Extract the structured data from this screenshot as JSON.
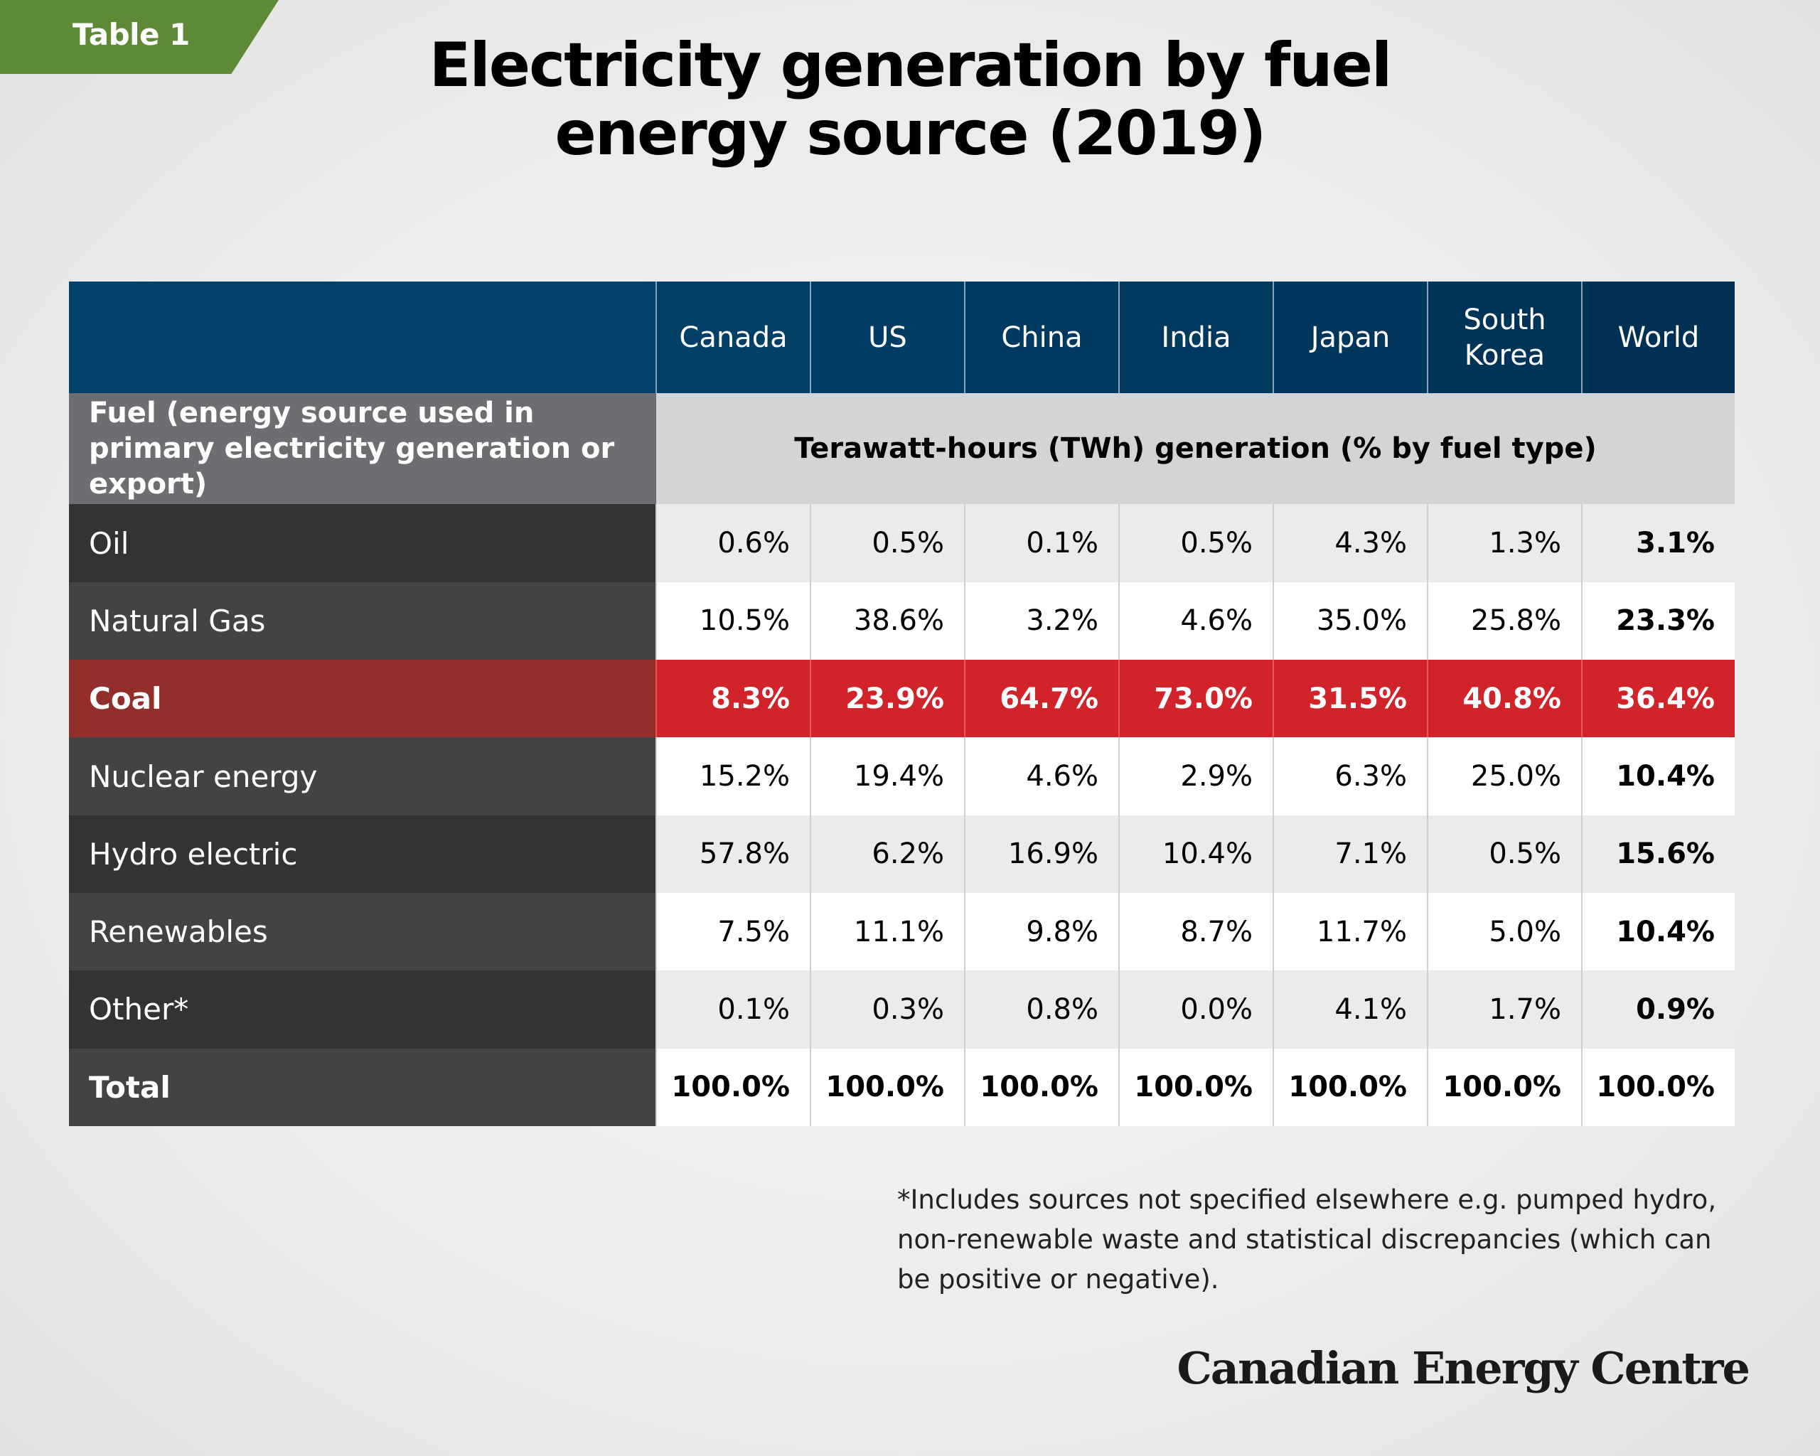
{
  "tag": "Table 1",
  "title": [
    "Electricity generation by fuel",
    "energy source (2019)"
  ],
  "colors": {
    "tag_green": "#5e8a37",
    "header_navy": "#01416a",
    "coal_red": "#d0232a",
    "coal_dark_red": "#932e2a"
  },
  "columns": [
    "Canada",
    "US",
    "China",
    "India",
    "Japan",
    "South Korea",
    "World"
  ],
  "subheader": {
    "left": "Fuel (energy source used in primary electricity generation or export)",
    "right": "Terawatt-hours (TWh) generation (% by fuel type)"
  },
  "chart_data": {
    "type": "table",
    "title": "Electricity generation by fuel energy source (2019)",
    "row_header": "Fuel (energy source used in primary electricity generation or export)",
    "unit_label": "Terawatt-hours (TWh) generation (% by fuel type)",
    "columns": [
      "Canada",
      "US",
      "China",
      "India",
      "Japan",
      "South Korea",
      "World"
    ],
    "rows": [
      {
        "label": "Oil",
        "values": [
          "0.6%",
          "0.5%",
          "0.1%",
          "0.5%",
          "4.3%",
          "1.3%",
          "3.1%"
        ]
      },
      {
        "label": "Natural Gas",
        "values": [
          "10.5%",
          "38.6%",
          "3.2%",
          "4.6%",
          "35.0%",
          "25.8%",
          "23.3%"
        ]
      },
      {
        "label": "Coal",
        "values": [
          "8.3%",
          "23.9%",
          "64.7%",
          "73.0%",
          "31.5%",
          "40.8%",
          "36.4%"
        ],
        "highlight": true
      },
      {
        "label": "Nuclear energy",
        "values": [
          "15.2%",
          "19.4%",
          "4.6%",
          "2.9%",
          "6.3%",
          "25.0%",
          "10.4%"
        ]
      },
      {
        "label": "Hydro electric",
        "values": [
          "57.8%",
          "6.2%",
          "16.9%",
          "10.4%",
          "7.1%",
          "0.5%",
          "15.6%"
        ]
      },
      {
        "label": "Renewables",
        "values": [
          "7.5%",
          "11.1%",
          "9.8%",
          "8.7%",
          "11.7%",
          "5.0%",
          "10.4%"
        ]
      },
      {
        "label": "Other*",
        "values": [
          "0.1%",
          "0.3%",
          "0.8%",
          "0.0%",
          "4.1%",
          "1.7%",
          "0.9%"
        ]
      },
      {
        "label": "Total",
        "values": [
          "100.0%",
          "100.0%",
          "100.0%",
          "100.0%",
          "100.0%",
          "100.0%",
          "100.0%"
        ],
        "bold": true
      }
    ]
  },
  "footnote": "*Includes sources not specified elsewhere e.g. pumped hydro, non-renewable waste and statistical discrepancies (which can be positive or negative).",
  "brand": "Canadian Energy Centre"
}
